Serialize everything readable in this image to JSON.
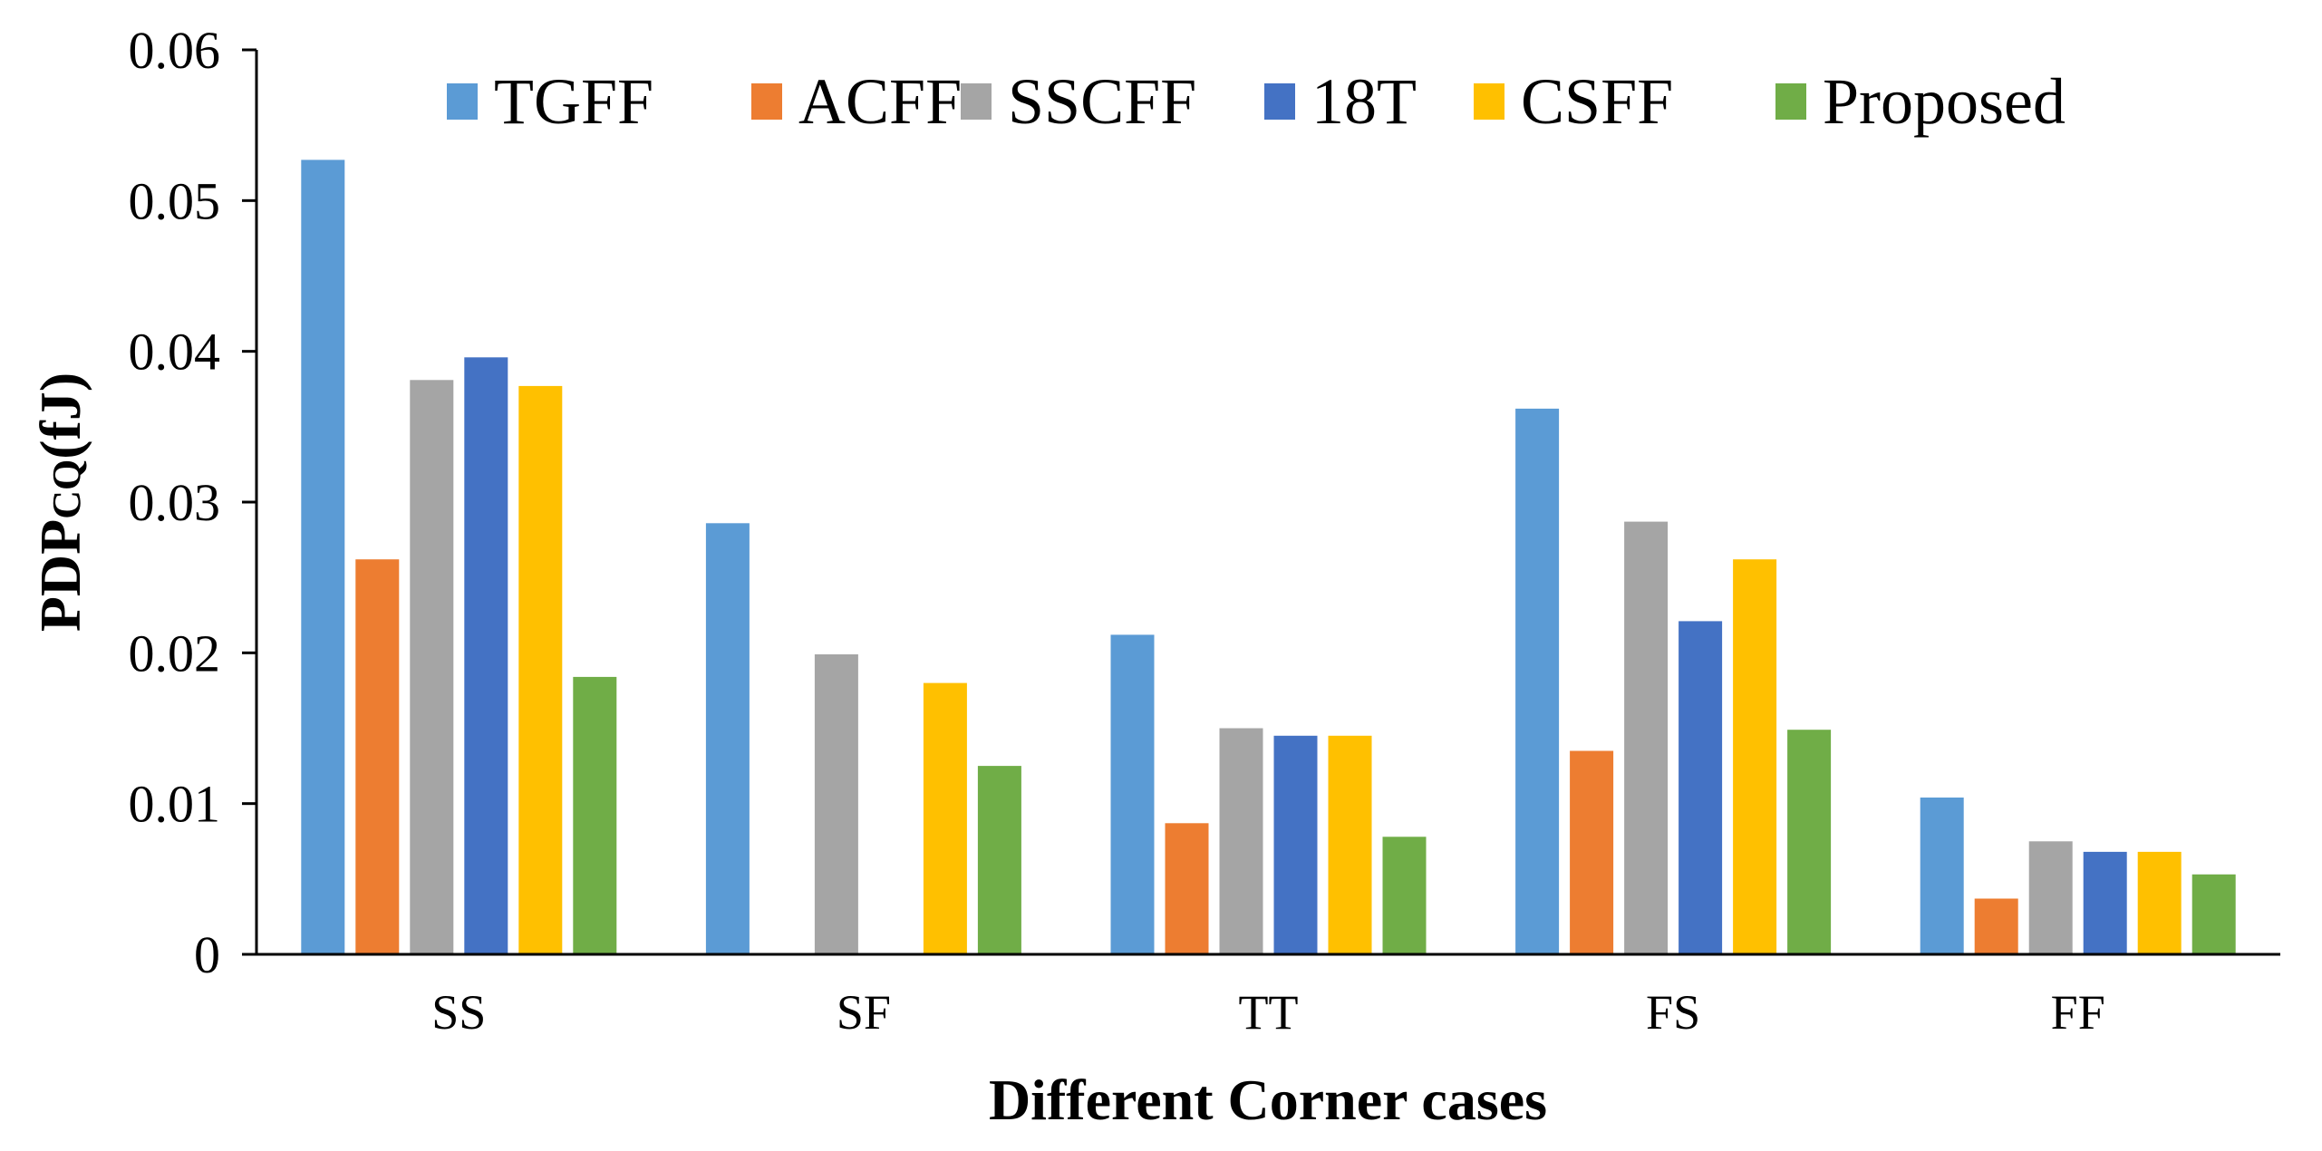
{
  "chart_data": {
    "type": "bar",
    "categories": [
      "SS",
      "SF",
      "TT",
      "FS",
      "FF"
    ],
    "series": [
      {
        "name": "TGFF",
        "color": "#5B9BD5",
        "values": [
          0.0527,
          0.0286,
          0.0212,
          0.0362,
          0.0104
        ]
      },
      {
        "name": "ACFF",
        "color": "#ED7D31",
        "values": [
          0.0262,
          null,
          0.0087,
          0.0135,
          0.0037
        ]
      },
      {
        "name": "SSCFF",
        "color": "#A5A5A5",
        "values": [
          0.0381,
          0.0199,
          0.015,
          0.0287,
          0.0075
        ]
      },
      {
        "name": "18T",
        "color": "#4472C4",
        "values": [
          0.0396,
          null,
          0.0145,
          0.0221,
          0.0068
        ]
      },
      {
        "name": "CSFF",
        "color": "#FFC000",
        "values": [
          0.0377,
          0.018,
          0.0145,
          0.0262,
          0.0068
        ]
      },
      {
        "name": "Proposed",
        "color": "#70AD47",
        "values": [
          0.0184,
          0.0125,
          0.0078,
          0.0149,
          0.0053
        ]
      }
    ],
    "yticks": [
      "0",
      "0.01",
      "0.02",
      "0.03",
      "0.04",
      "0.05",
      "0.06"
    ],
    "ylim": [
      0,
      0.06
    ],
    "ylabel_main": "PDP",
    "ylabel_sub": "CQ",
    "ylabel_unit": "(fJ)",
    "xlabel": "Different Corner cases",
    "title": "",
    "legend_position": "top",
    "grid": false
  }
}
